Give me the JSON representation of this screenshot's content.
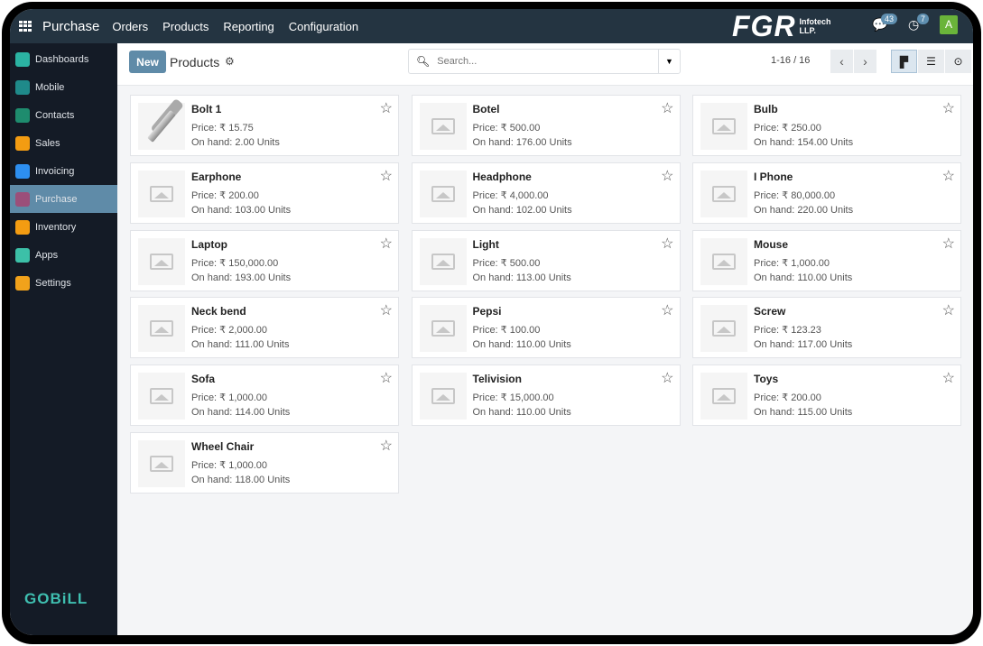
{
  "topbar": {
    "app": "Purchase",
    "menus": [
      "Orders",
      "Products",
      "Reporting",
      "Configuration"
    ],
    "logo": "FGR",
    "logo_sub1": "Infotech",
    "logo_sub2": "LLP.",
    "messages": "43",
    "activities": "7",
    "avatar": "A"
  },
  "sidebar": {
    "items": [
      {
        "label": "Dashboards",
        "color": "#2bb3a3"
      },
      {
        "label": "Mobile",
        "color": "#1f8a8a"
      },
      {
        "label": "Contacts",
        "color": "#1e8c6e"
      },
      {
        "label": "Sales",
        "color": "#f39c12"
      },
      {
        "label": "Invoicing",
        "color": "#2d8ff0"
      },
      {
        "label": "Purchase",
        "color": "#9b4f7a",
        "active": true
      },
      {
        "label": "Inventory",
        "color": "#f39c12"
      },
      {
        "label": "Apps",
        "color": "#3cc0a8"
      },
      {
        "label": "Settings",
        "color": "#f1a21b"
      }
    ],
    "footer": "GOBiLL"
  },
  "control": {
    "new": "New",
    "title": "Products",
    "search_placeholder": "Search...",
    "pager": "1-16 / 16"
  },
  "products": [
    {
      "name": "Bolt 1",
      "price": "Price: ₹ 15.75",
      "on_hand": "On hand: 2.00 Units",
      "image": "bolt"
    },
    {
      "name": "Botel",
      "price": "Price: ₹ 500.00",
      "on_hand": "On hand: 176.00 Units"
    },
    {
      "name": "Bulb",
      "price": "Price: ₹ 250.00",
      "on_hand": "On hand: 154.00 Units"
    },
    {
      "name": "Earphone",
      "price": "Price: ₹ 200.00",
      "on_hand": "On hand: 103.00 Units"
    },
    {
      "name": "Headphone",
      "price": "Price: ₹ 4,000.00",
      "on_hand": "On hand: 102.00 Units"
    },
    {
      "name": "I Phone",
      "price": "Price: ₹ 80,000.00",
      "on_hand": "On hand: 220.00 Units"
    },
    {
      "name": "Laptop",
      "price": "Price: ₹ 150,000.00",
      "on_hand": "On hand: 193.00 Units"
    },
    {
      "name": "Light",
      "price": "Price: ₹ 500.00",
      "on_hand": "On hand: 113.00 Units"
    },
    {
      "name": "Mouse",
      "price": "Price: ₹ 1,000.00",
      "on_hand": "On hand: 110.00 Units"
    },
    {
      "name": "Neck bend",
      "price": "Price: ₹ 2,000.00",
      "on_hand": "On hand: 111.00 Units"
    },
    {
      "name": "Pepsi",
      "price": "Price: ₹ 100.00",
      "on_hand": "On hand: 110.00 Units"
    },
    {
      "name": "Screw",
      "price": "Price: ₹ 123.23",
      "on_hand": "On hand: 117.00 Units"
    },
    {
      "name": "Sofa",
      "price": "Price: ₹ 1,000.00",
      "on_hand": "On hand: 114.00 Units"
    },
    {
      "name": "Telivision",
      "price": "Price: ₹ 15,000.00",
      "on_hand": "On hand: 110.00 Units"
    },
    {
      "name": "Toys",
      "price": "Price: ₹ 200.00",
      "on_hand": "On hand: 115.00 Units"
    },
    {
      "name": "Wheel Chair",
      "price": "Price: ₹ 1,000.00",
      "on_hand": "On hand: 118.00 Units"
    }
  ]
}
